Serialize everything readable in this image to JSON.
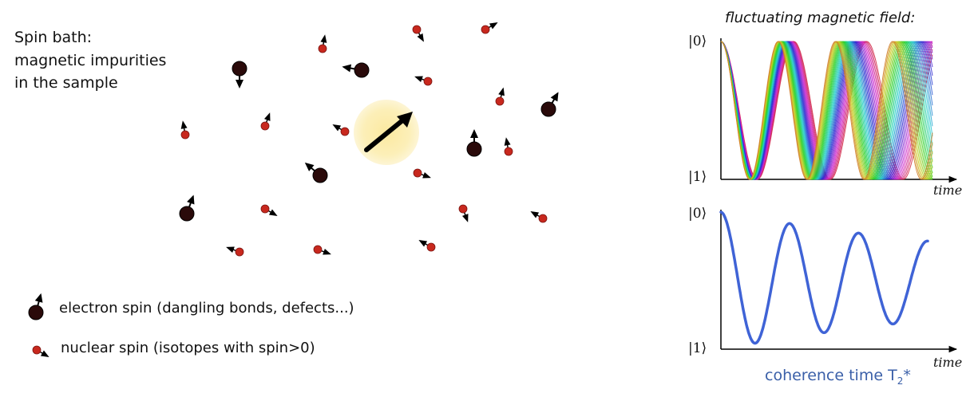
{
  "left_panel": {
    "title_lines": [
      "Spin bath:",
      "magnetic impurities",
      "in the sample"
    ],
    "legend": {
      "electron": "electron spin (dangling bonds, defects...)",
      "nuclear": "nuclear spin (isotopes with spin>0)"
    },
    "colors": {
      "electron": "#2a0a0a",
      "nuclear": "#c8281e",
      "glow": "#fcefb4",
      "arrow": "#000000"
    }
  },
  "right_panel": {
    "title": "fluctuating magnetic field:",
    "top_plot": {
      "y_top_label": "|0⟩",
      "y_bottom_label": "|1⟩",
      "x_label": "time"
    },
    "bottom_plot": {
      "y_top_label": "|0⟩",
      "y_bottom_label": "|1⟩",
      "x_label": "time"
    },
    "caption_main": "coherence time T",
    "caption_sub": "2",
    "caption_tail": "*",
    "colors": {
      "decay_curve": "#3f63d6",
      "caption": "#3a5fa8"
    }
  }
}
